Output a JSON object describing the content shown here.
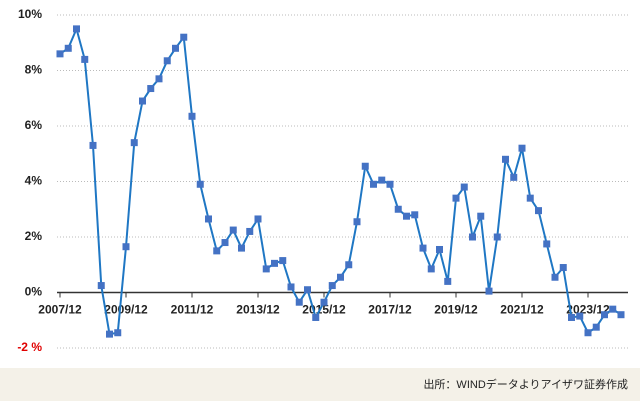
{
  "chart_data": {
    "type": "line",
    "source": "出所：WINDデータよりアイザワ証券作成",
    "categories": [
      "2007/12",
      null,
      null,
      null,
      null,
      null,
      null,
      null,
      "2009/12",
      null,
      null,
      null,
      null,
      null,
      null,
      null,
      "2011/12",
      null,
      null,
      null,
      null,
      null,
      null,
      null,
      "2013/12",
      null,
      null,
      null,
      null,
      null,
      null,
      null,
      "2015/12",
      null,
      null,
      null,
      null,
      null,
      null,
      null,
      "2017/12",
      null,
      null,
      null,
      null,
      null,
      null,
      null,
      "2019/12",
      null,
      null,
      null,
      null,
      null,
      null,
      null,
      "2021/12",
      null,
      null,
      null,
      null,
      null,
      null,
      null,
      "2023/12",
      null,
      null,
      null,
      null
    ],
    "series": [
      {
        "color": "#1f77c4",
        "marker_color": "#4472c4",
        "values": [
          8.6,
          8.8,
          9.5,
          8.4,
          5.3,
          0.25,
          -1.5,
          -1.45,
          1.65,
          5.4,
          6.9,
          7.35,
          7.7,
          8.35,
          8.8,
          9.2,
          6.35,
          3.9,
          2.65,
          1.5,
          1.8,
          2.25,
          1.6,
          2.2,
          2.65,
          0.85,
          1.05,
          1.15,
          0.2,
          -0.35,
          0.1,
          -0.9,
          -0.35,
          0.25,
          0.55,
          1.0,
          2.55,
          4.55,
          3.9,
          4.05,
          3.9,
          3.0,
          2.75,
          2.8,
          1.6,
          0.85,
          1.55,
          0.4,
          3.4,
          3.8,
          2.0,
          2.75,
          0.05,
          2.0,
          4.8,
          4.15,
          5.2,
          3.4,
          2.95,
          1.75,
          0.55,
          0.9,
          -0.9,
          -0.85,
          -1.45,
          -1.25,
          -0.8,
          -0.6,
          -0.8
        ]
      }
    ],
    "ylim": [
      -2,
      10
    ],
    "yticks": [
      {
        "value": -2,
        "label": "-2 %"
      },
      {
        "value": 0,
        "label": "0%"
      },
      {
        "value": 2,
        "label": "2%"
      },
      {
        "value": 4,
        "label": "4%"
      },
      {
        "value": 6,
        "label": "6%"
      },
      {
        "value": 8,
        "label": "8%"
      },
      {
        "value": 10,
        "label": "10%"
      }
    ],
    "negative_tick_color": "#e00000",
    "grid": true
  }
}
